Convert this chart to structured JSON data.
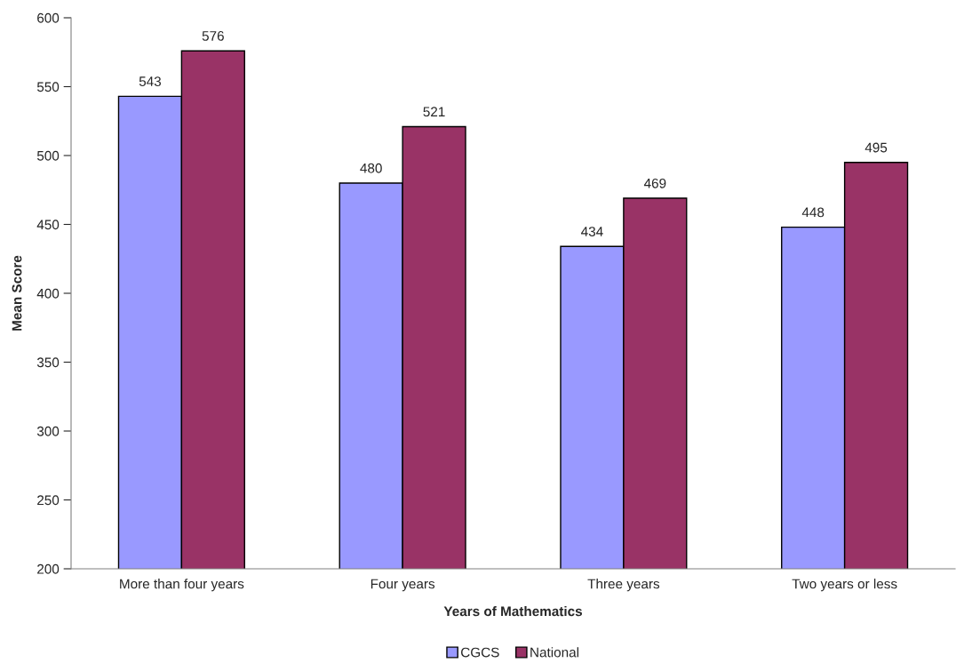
{
  "chart_data": {
    "type": "bar",
    "xlabel": "Years of Mathematics",
    "ylabel": "Mean Score",
    "categories": [
      "More than four years",
      "Four years",
      "Three years",
      "Two years or less"
    ],
    "series": [
      {
        "name": "CGCS",
        "color": "#9999ff",
        "values": [
          543,
          480,
          434,
          448
        ]
      },
      {
        "name": "National",
        "color": "#993366",
        "values": [
          576,
          521,
          469,
          495
        ]
      }
    ],
    "ylim": [
      200,
      600
    ],
    "yticks": [
      200,
      250,
      300,
      350,
      400,
      450,
      500,
      550,
      600
    ],
    "data_labels": true,
    "grid": false,
    "legend": "bottom"
  }
}
